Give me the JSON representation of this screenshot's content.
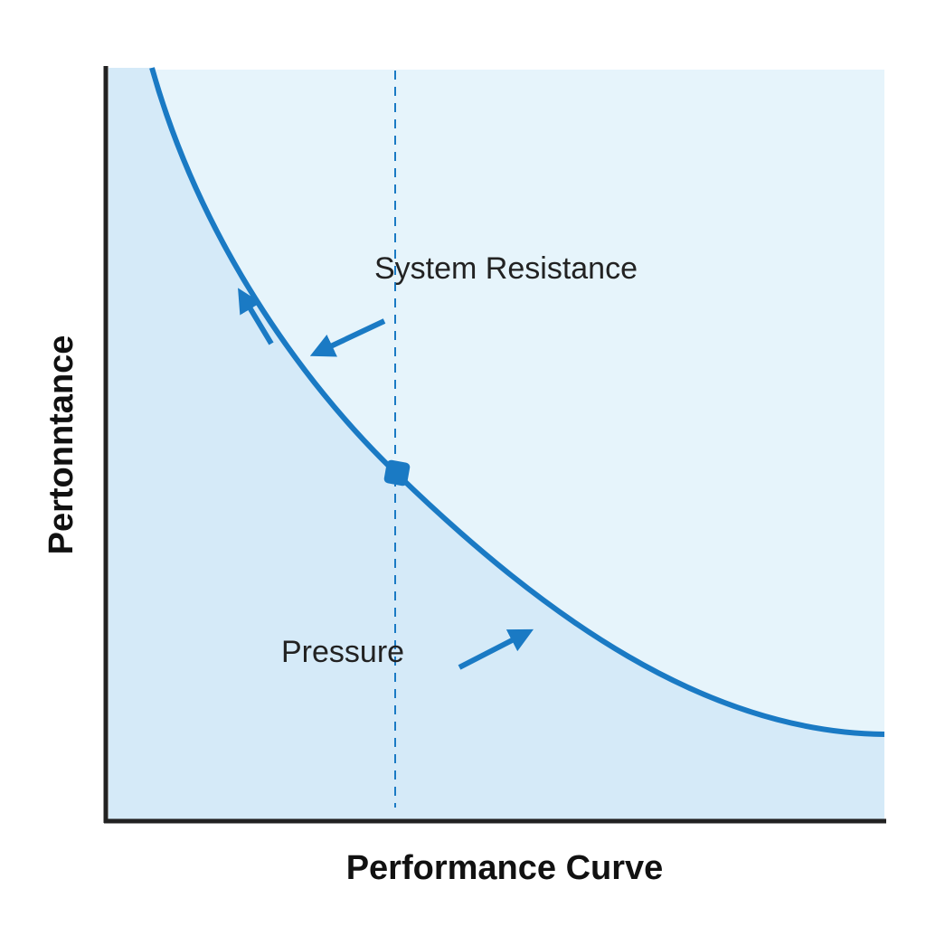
{
  "diagram": {
    "y_axis_label": "Pertonntance",
    "x_axis_label": "Performance Curve",
    "annotations": [
      "System Resistance",
      "Pressure"
    ]
  }
}
